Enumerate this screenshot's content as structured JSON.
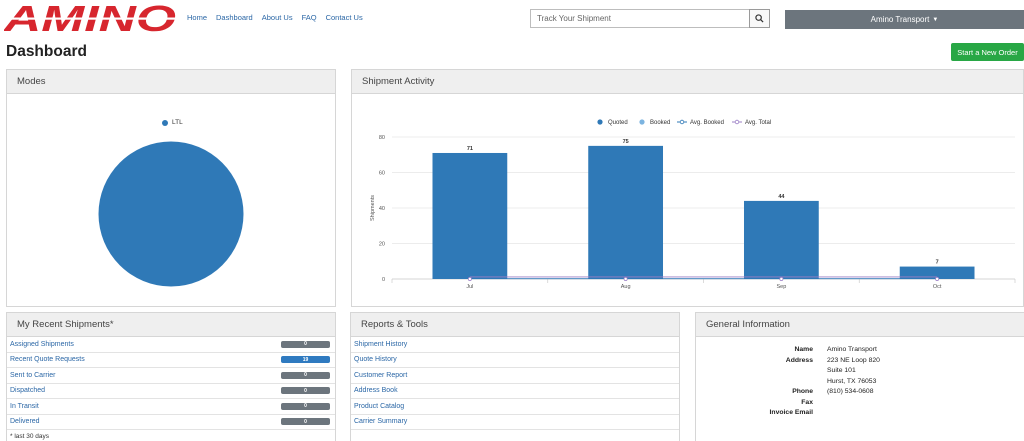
{
  "brand": {
    "logo_text": "AMINO",
    "color": "#d7262e"
  },
  "nav": [
    "Home",
    "Dashboard",
    "About Us",
    "FAQ",
    "Contact Us"
  ],
  "search": {
    "placeholder": "Track Your Shipment"
  },
  "account": {
    "label": "Amino Transport"
  },
  "page": {
    "title": "Dashboard",
    "new_order_label": "Start a New Order"
  },
  "modes": {
    "title": "Modes",
    "legend": "LTL",
    "color": "#2f79b7"
  },
  "activity": {
    "title": "Shipment Activity"
  },
  "chart_data": {
    "type": "bar",
    "categories": [
      "Jul",
      "Aug",
      "Sep",
      "Oct"
    ],
    "series": [
      {
        "name": "Quoted",
        "values": [
          71,
          75,
          44,
          7
        ],
        "color": "#2f79b7"
      },
      {
        "name": "Booked",
        "values": [
          0,
          0,
          0,
          0
        ],
        "color": "#7cb4e0"
      },
      {
        "name": "Avg. Booked",
        "values": [
          0,
          0,
          0,
          0
        ],
        "color": "#2f79b7"
      },
      {
        "name": "Avg. Total",
        "values": [
          1,
          1,
          1,
          1
        ],
        "color": "#9b7fc6"
      }
    ],
    "ylabel": "Shipments",
    "ylim": [
      0,
      80
    ],
    "yticks": [
      0,
      20,
      40,
      60,
      80
    ],
    "grid": true,
    "legend_position": "top-center"
  },
  "recent": {
    "title": "My Recent Shipments*",
    "items": [
      {
        "label": "Assigned Shipments",
        "count": "0",
        "highlight": false
      },
      {
        "label": "Recent Quote Requests",
        "count": "19",
        "highlight": true
      },
      {
        "label": "Sent to Carrier",
        "count": "0",
        "highlight": false
      },
      {
        "label": "Dispatched",
        "count": "0",
        "highlight": false
      },
      {
        "label": "In Transit",
        "count": "0",
        "highlight": false
      },
      {
        "label": "Delivered",
        "count": "0",
        "highlight": false
      }
    ],
    "footnote": "* last 30 days"
  },
  "reports": {
    "title": "Reports & Tools",
    "items": [
      "Shipment History",
      "Quote History",
      "Customer Report",
      "Address Book",
      "Product Catalog",
      "Carrier Summary"
    ]
  },
  "general": {
    "title": "General Information",
    "name_label": "Name",
    "name": "Amino Transport",
    "address_label": "Address",
    "address_lines": [
      "223 NE Loop 820",
      "Suite 101",
      "Hurst, TX 76053"
    ],
    "phone_label": "Phone",
    "phone": "(810) 534-0608",
    "fax_label": "Fax",
    "fax": "",
    "invoice_email_label": "Invoice Email",
    "invoice_email": ""
  }
}
